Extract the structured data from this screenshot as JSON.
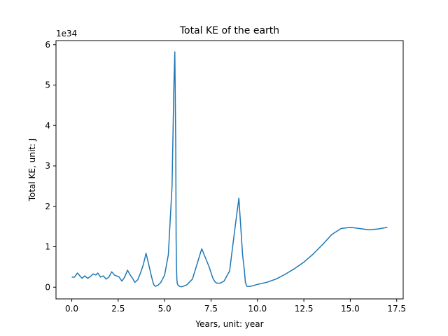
{
  "chart_data": {
    "type": "line",
    "title": "Total KE of the earth",
    "xlabel": "Years, unit: year",
    "ylabel": "Total KE, unit: J",
    "y_offset_label": "1e34",
    "xlim": [
      -0.85,
      17.85
    ],
    "ylim": [
      -0.29,
      6.1
    ],
    "grid": false,
    "xticks": [
      0.0,
      2.5,
      5.0,
      7.5,
      10.0,
      12.5,
      15.0,
      17.5
    ],
    "xtick_labels": [
      "0.0",
      "2.5",
      "5.0",
      "7.5",
      "10.0",
      "12.5",
      "15.0",
      "17.5"
    ],
    "yticks": [
      0,
      1,
      2,
      3,
      4,
      5,
      6
    ],
    "ytick_labels": [
      "0",
      "1",
      "2",
      "3",
      "4",
      "5",
      "6"
    ],
    "colors": {
      "line": "#1f77b4",
      "axes": "#000000",
      "background": "#ffffff"
    },
    "series": [
      {
        "x": [
          0.0,
          0.15,
          0.3,
          0.4,
          0.55,
          0.7,
          0.85,
          1.0,
          1.15,
          1.3,
          1.4,
          1.55,
          1.7,
          1.85,
          2.0,
          2.15,
          2.3,
          2.4,
          2.55,
          2.7,
          2.85,
          3.0,
          3.15,
          3.3,
          3.4,
          3.55,
          3.7,
          3.85,
          4.0,
          4.15,
          4.3,
          4.4,
          4.45,
          4.5,
          4.55,
          4.65,
          4.8,
          5.0,
          5.2,
          5.4,
          5.5,
          5.55,
          5.6,
          5.62,
          5.64,
          5.66,
          5.68,
          5.72,
          5.8,
          5.9,
          6.0,
          6.2,
          6.5,
          7.0,
          7.4,
          7.6,
          7.7,
          7.75,
          7.8,
          7.9,
          8.0,
          8.2,
          8.5,
          8.8,
          9.0,
          9.2,
          9.3,
          9.35,
          9.4,
          9.42,
          9.45,
          9.5,
          9.6,
          9.8,
          10.0,
          10.5,
          11.0,
          11.5,
          12.0,
          12.5,
          13.0,
          13.5,
          14.0,
          14.5,
          15.0,
          15.5,
          16.0,
          16.5,
          17.0
        ],
        "y": [
          0.25,
          0.25,
          0.35,
          0.3,
          0.22,
          0.28,
          0.22,
          0.26,
          0.33,
          0.3,
          0.35,
          0.25,
          0.28,
          0.2,
          0.25,
          0.38,
          0.3,
          0.28,
          0.25,
          0.15,
          0.25,
          0.42,
          0.3,
          0.2,
          0.12,
          0.18,
          0.35,
          0.55,
          0.84,
          0.55,
          0.25,
          0.08,
          0.04,
          0.02,
          0.03,
          0.05,
          0.12,
          0.3,
          0.8,
          2.5,
          5.0,
          5.82,
          3.5,
          1.2,
          0.5,
          0.2,
          0.1,
          0.05,
          0.02,
          0.01,
          0.02,
          0.06,
          0.2,
          0.95,
          0.5,
          0.22,
          0.14,
          0.12,
          0.1,
          0.1,
          0.1,
          0.15,
          0.4,
          1.5,
          2.2,
          0.8,
          0.4,
          0.12,
          0.06,
          0.03,
          0.02,
          0.02,
          0.02,
          0.04,
          0.07,
          0.12,
          0.2,
          0.32,
          0.46,
          0.62,
          0.82,
          1.05,
          1.3,
          1.45,
          1.48,
          1.45,
          1.42,
          1.44,
          1.48
        ]
      }
    ]
  }
}
